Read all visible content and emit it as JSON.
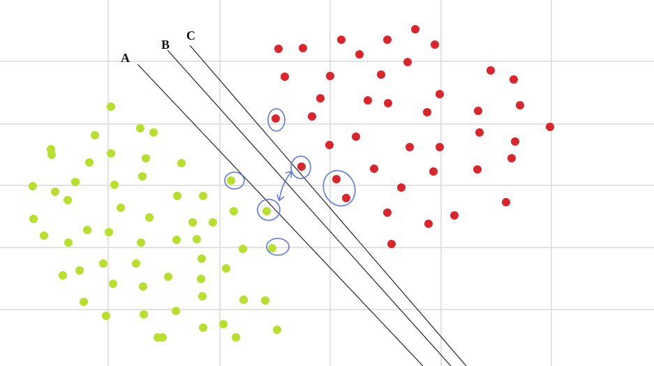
{
  "lines": [
    {
      "label": "A"
    },
    {
      "label": "B"
    },
    {
      "label": "C"
    }
  ]
}
